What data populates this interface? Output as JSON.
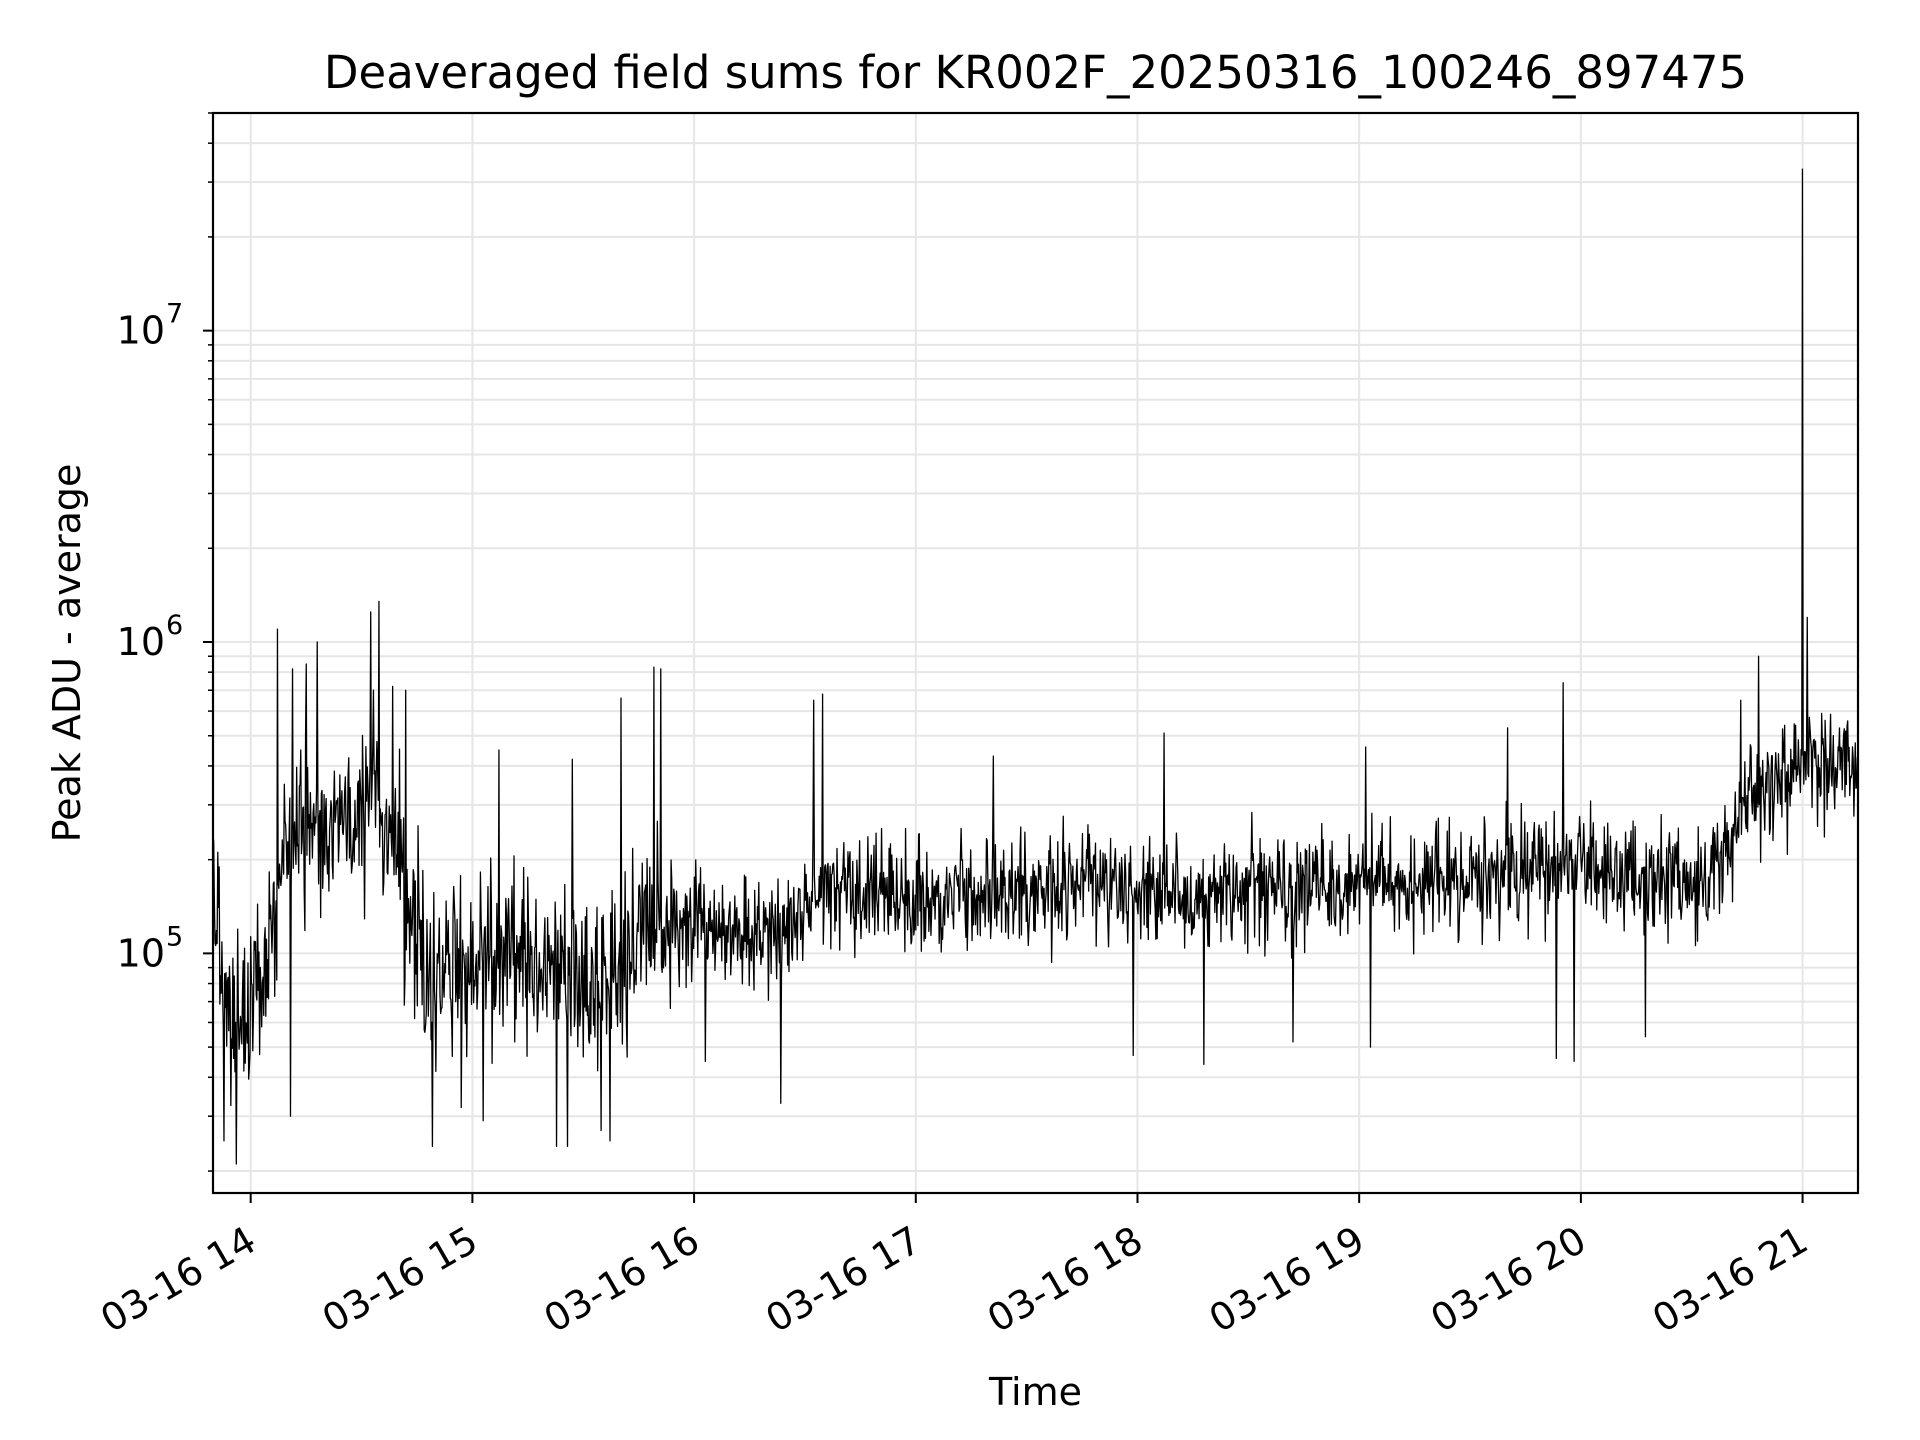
{
  "chart_data": {
    "type": "line",
    "title": "Deaveraged field sums for KR002F_20250316_100246_897475",
    "xlabel": "Time",
    "ylabel": "Peak ADU - average",
    "yscale": "log",
    "xlim": [
      13.83,
      21.25
    ],
    "ylim": [
      17000,
      50000000
    ],
    "grid": true,
    "line_color": "#000000",
    "x_ticks": [
      {
        "value": 14,
        "label": "03-16 14"
      },
      {
        "value": 15,
        "label": "03-16 15"
      },
      {
        "value": 16,
        "label": "03-16 16"
      },
      {
        "value": 17,
        "label": "03-16 17"
      },
      {
        "value": 18,
        "label": "03-16 18"
      },
      {
        "value": 19,
        "label": "03-16 19"
      },
      {
        "value": 20,
        "label": "03-16 20"
      },
      {
        "value": 21,
        "label": "03-16 21"
      }
    ],
    "y_ticks": [
      {
        "value": 100000,
        "base": "10",
        "exp": "5"
      },
      {
        "value": 1000000,
        "base": "10",
        "exp": "6"
      },
      {
        "value": 10000000,
        "base": "10",
        "exp": "7"
      }
    ],
    "series": [
      {
        "name": "Deaveraged field sum",
        "anchors": [
          [
            13.83,
            180000
          ],
          [
            13.87,
            100000
          ],
          [
            13.9,
            60000
          ],
          [
            13.95,
            50000
          ],
          [
            14.0,
            65000
          ],
          [
            14.05,
            80000
          ],
          [
            14.1,
            130000
          ],
          [
            14.15,
            220000
          ],
          [
            14.2,
            240000
          ],
          [
            14.25,
            250000
          ],
          [
            14.3,
            220000
          ],
          [
            14.35,
            250000
          ],
          [
            14.4,
            270000
          ],
          [
            14.45,
            280000
          ],
          [
            14.5,
            320000
          ],
          [
            14.55,
            350000
          ],
          [
            14.6,
            300000
          ],
          [
            14.65,
            250000
          ],
          [
            14.7,
            150000
          ],
          [
            14.75,
            110000
          ],
          [
            14.8,
            90000
          ],
          [
            14.85,
            80000
          ],
          [
            14.9,
            85000
          ],
          [
            14.95,
            90000
          ],
          [
            15.0,
            95000
          ],
          [
            15.1,
            100000
          ],
          [
            15.2,
            95000
          ],
          [
            15.3,
            90000
          ],
          [
            15.4,
            88000
          ],
          [
            15.5,
            85000
          ],
          [
            15.6,
            90000
          ],
          [
            15.7,
            100000
          ],
          [
            15.8,
            130000
          ],
          [
            15.9,
            120000
          ],
          [
            16.0,
            115000
          ],
          [
            16.1,
            110000
          ],
          [
            16.2,
            115000
          ],
          [
            16.3,
            110000
          ],
          [
            16.4,
            110000
          ],
          [
            16.5,
            130000
          ],
          [
            16.6,
            150000
          ],
          [
            16.8,
            155000
          ],
          [
            17.0,
            150000
          ],
          [
            17.2,
            155000
          ],
          [
            17.4,
            155000
          ],
          [
            17.6,
            160000
          ],
          [
            17.8,
            160000
          ],
          [
            18.0,
            160000
          ],
          [
            18.2,
            150000
          ],
          [
            18.4,
            160000
          ],
          [
            18.6,
            165000
          ],
          [
            18.8,
            160000
          ],
          [
            19.0,
            165000
          ],
          [
            19.2,
            170000
          ],
          [
            19.4,
            175000
          ],
          [
            19.6,
            180000
          ],
          [
            19.8,
            190000
          ],
          [
            20.0,
            185000
          ],
          [
            20.2,
            175000
          ],
          [
            20.4,
            170000
          ],
          [
            20.5,
            160000
          ],
          [
            20.6,
            180000
          ],
          [
            20.7,
            270000
          ],
          [
            20.8,
            330000
          ],
          [
            20.9,
            360000
          ],
          [
            21.0,
            380000
          ],
          [
            21.1,
            400000
          ],
          [
            21.2,
            420000
          ],
          [
            21.25,
            430000
          ]
        ],
        "spikes": [
          [
            21.0,
            33000000
          ],
          [
            14.12,
            1100000
          ],
          [
            14.54,
            1250000
          ],
          [
            14.58,
            1350000
          ],
          [
            14.25,
            850000
          ],
          [
            14.3,
            1000000
          ],
          [
            14.19,
            820000
          ],
          [
            15.82,
            830000
          ],
          [
            15.85,
            820000
          ],
          [
            16.54,
            650000
          ],
          [
            16.58,
            680000
          ],
          [
            15.67,
            660000
          ],
          [
            19.92,
            740000
          ],
          [
            20.8,
            900000
          ],
          [
            21.02,
            1200000
          ],
          [
            18.12,
            510000
          ],
          [
            19.67,
            530000
          ],
          [
            19.03,
            460000
          ],
          [
            15.12,
            450000
          ],
          [
            15.45,
            420000
          ],
          [
            17.35,
            430000
          ],
          [
            20.72,
            650000
          ],
          [
            14.7,
            700000
          ],
          [
            14.64,
            720000
          ],
          [
            21.1,
            560000
          ]
        ],
        "dips": [
          [
            13.88,
            25000
          ],
          [
            14.18,
            30000
          ],
          [
            14.82,
            24000
          ],
          [
            15.38,
            24000
          ],
          [
            15.43,
            24000
          ],
          [
            15.58,
            27000
          ],
          [
            15.62,
            25000
          ],
          [
            16.39,
            33000
          ],
          [
            17.98,
            47000
          ],
          [
            18.3,
            44000
          ],
          [
            19.89,
            46000
          ],
          [
            19.97,
            45000
          ],
          [
            15.05,
            29000
          ],
          [
            14.95,
            32000
          ],
          [
            16.05,
            45000
          ],
          [
            20.29,
            54000
          ],
          [
            18.7,
            52000
          ],
          [
            19.05,
            50000
          ]
        ]
      }
    ]
  }
}
